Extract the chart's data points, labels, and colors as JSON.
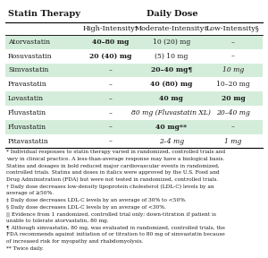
{
  "title_left": "Statin Therapy",
  "title_right": "Daily Dose",
  "col_headers": [
    "High-Intensity†",
    "Moderate-Intensity‡",
    "Low-Intensity§"
  ],
  "rows": [
    {
      "drug": "Atorvastatin",
      "high": "40–80 mg",
      "moderate": "10 (20) mg",
      "low": "–",
      "shaded": true,
      "high_bold": true,
      "moderate_bold": false,
      "moderate_italic": false,
      "low_bold": false,
      "low_italic": false
    },
    {
      "drug": "Rosuvastatin",
      "high": "20 (40) mg",
      "moderate": "(5) 10 mg",
      "low": "–",
      "shaded": false,
      "high_bold": true,
      "moderate_bold": false,
      "moderate_italic": false,
      "low_bold": false,
      "low_italic": false
    },
    {
      "drug": "Simvastatin",
      "high": "–",
      "moderate": "20–40 mg¶",
      "low": "10 mg",
      "shaded": true,
      "high_bold": false,
      "moderate_bold": true,
      "moderate_italic": false,
      "low_bold": false,
      "low_italic": true
    },
    {
      "drug": "Pravastatin",
      "high": "–",
      "moderate": "40 (80) mg",
      "low": "10–20 mg",
      "shaded": false,
      "high_bold": false,
      "moderate_bold": true,
      "moderate_italic": false,
      "low_bold": false,
      "low_italic": false
    },
    {
      "drug": "Lovastatin",
      "high": "–",
      "moderate": "40 mg",
      "low": "20 mg",
      "shaded": true,
      "high_bold": false,
      "moderate_bold": true,
      "moderate_italic": false,
      "low_bold": true,
      "low_italic": false
    },
    {
      "drug": "Fluvastatin",
      "high": "–",
      "moderate": "80 mg (Fluvastatin XL)",
      "low": "20–40 mg",
      "shaded": false,
      "high_bold": false,
      "moderate_bold": false,
      "moderate_italic": true,
      "low_bold": false,
      "low_italic": true
    },
    {
      "drug": "Fluvastatin",
      "high": "–",
      "moderate": "40 mg**",
      "low": "–",
      "shaded": true,
      "high_bold": false,
      "moderate_bold": true,
      "moderate_italic": false,
      "low_bold": false,
      "low_italic": false
    },
    {
      "drug": "Pitavastatin",
      "high": "–",
      "moderate": "2–4 mg",
      "low": "1 mg",
      "shaded": false,
      "high_bold": false,
      "moderate_bold": false,
      "moderate_italic": true,
      "low_bold": false,
      "low_italic": true
    }
  ],
  "footnotes": [
    "* Individual responses to statin therapy varied in randomized, controlled trials and",
    "vary in clinical practice. A less-than-average response may have a biological basis.",
    "Statins and dosages in bold reduced major cardiovascular events in randomized,",
    "controlled trials. Statins and doses in italics were approved by the U.S. Food and",
    "Drug Administration (FDA) but were not tested in randomized, controlled trials.",
    "† Daily dose decreases low-density lipoprotein cholesterol (LDL-C) levels by an",
    "average of ≥50%.",
    "‡ Daily dose decreases LDL-C levels by an average of 30% to <50%.",
    "§ Daily dose decreases LDL-C levels by an average of <30%.",
    "|| Evidence from 1 randomized, controlled trial only; down-titration if patient is",
    "unable to tolerate atorvastatin, 80 mg.",
    "¶ Although simvastatin, 80 mg, was evaluated in randomized, controlled trials, the",
    "FDA recommends against initiation of or titration to 80 mg of simvastatin because",
    "of increased risk for myopathy and rhabdomyolysis.",
    "** Twice daily."
  ],
  "shade_color": "#d4edda",
  "bg_color": "#ffffff",
  "text_color": "#1a1a1a",
  "font_size_table": 5.5,
  "font_size_header": 5.8,
  "font_size_footnote": 4.2,
  "font_size_title": 7.0
}
